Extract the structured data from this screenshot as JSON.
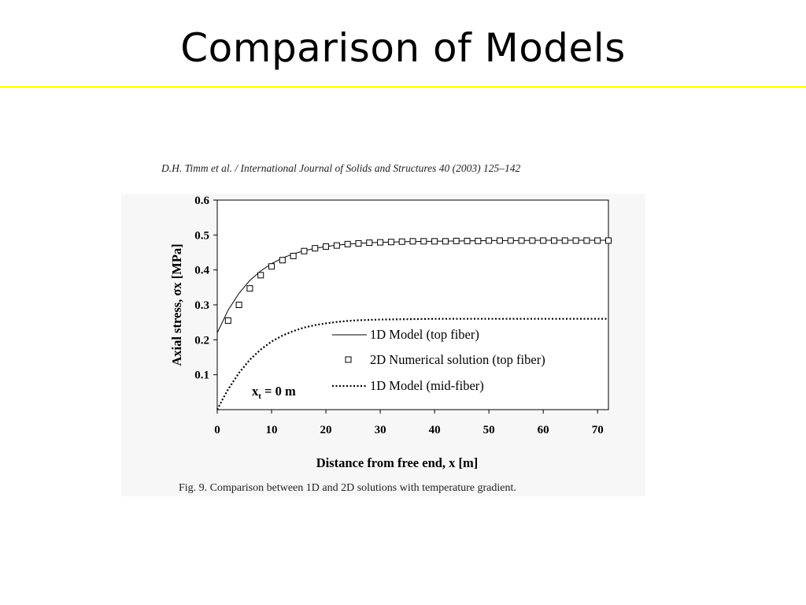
{
  "slide": {
    "title": "Comparison of Models",
    "rule_color": "#ffff33"
  },
  "figure": {
    "citation": "D.H. Timm et al. / International Journal of Solids and Structures 40 (2003) 125–142",
    "caption": "Fig. 9. Comparison between 1D and 2D solutions with temperature gradient."
  },
  "chart_data": {
    "type": "line",
    "title": "",
    "xlabel": "Distance from free end, x [m]",
    "ylabel": "Axial stress, σx [MPa]",
    "xlim": [
      0,
      72
    ],
    "ylim": [
      0,
      0.6
    ],
    "xticks": [
      0,
      10,
      20,
      30,
      40,
      50,
      60,
      70
    ],
    "xtick_labels": [
      "0",
      "10",
      "20",
      "30",
      "40",
      "50",
      "60",
      "70"
    ],
    "yticks": [
      0.1,
      0.2,
      0.3,
      0.4,
      0.5,
      0.6
    ],
    "ytick_labels": [
      "0.1",
      "0.2",
      "0.3",
      "0.4",
      "0.5",
      "0.6"
    ],
    "grid": false,
    "legend_position": "lower-right",
    "annotation": "xt = 0 m",
    "series": [
      {
        "name": "1D Model (top fiber)",
        "style": "solid",
        "x": [
          0,
          2,
          4,
          6,
          8,
          10,
          12,
          14,
          16,
          18,
          20,
          22,
          24,
          26,
          28,
          30,
          35,
          40,
          45,
          50,
          55,
          60,
          65,
          70,
          72
        ],
        "y": [
          0.22,
          0.285,
          0.333,
          0.37,
          0.397,
          0.418,
          0.434,
          0.446,
          0.455,
          0.462,
          0.467,
          0.471,
          0.474,
          0.476,
          0.478,
          0.479,
          0.481,
          0.482,
          0.483,
          0.484,
          0.484,
          0.485,
          0.485,
          0.485,
          0.485
        ]
      },
      {
        "name": "2D Numerical solution (top fiber)",
        "style": "square-markers",
        "x": [
          2,
          4,
          6,
          8,
          10,
          12,
          14,
          16,
          18,
          20,
          22,
          24,
          26,
          28,
          30,
          32,
          34,
          36,
          38,
          40,
          42,
          44,
          46,
          48,
          50,
          52,
          54,
          56,
          58,
          60,
          62,
          64,
          66,
          68,
          70,
          72
        ],
        "y": [
          0.255,
          0.3,
          0.347,
          0.385,
          0.41,
          0.428,
          0.44,
          0.454,
          0.462,
          0.467,
          0.47,
          0.474,
          0.476,
          0.478,
          0.479,
          0.48,
          0.481,
          0.482,
          0.482,
          0.482,
          0.482,
          0.483,
          0.483,
          0.483,
          0.484,
          0.484,
          0.484,
          0.484,
          0.484,
          0.484,
          0.484,
          0.484,
          0.484,
          0.484,
          0.484,
          0.484
        ]
      },
      {
        "name": "1D Model (mid-fiber)",
        "style": "dotted",
        "x": [
          0,
          1,
          2,
          4,
          6,
          8,
          10,
          12,
          14,
          16,
          18,
          20,
          22,
          24,
          26,
          28,
          30,
          35,
          40,
          45,
          50,
          55,
          60,
          65,
          70,
          72
        ],
        "y": [
          0.0,
          0.03,
          0.058,
          0.105,
          0.143,
          0.172,
          0.195,
          0.212,
          0.225,
          0.235,
          0.242,
          0.247,
          0.251,
          0.254,
          0.256,
          0.257,
          0.258,
          0.259,
          0.26,
          0.26,
          0.26,
          0.26,
          0.26,
          0.26,
          0.26,
          0.26
        ]
      }
    ]
  }
}
